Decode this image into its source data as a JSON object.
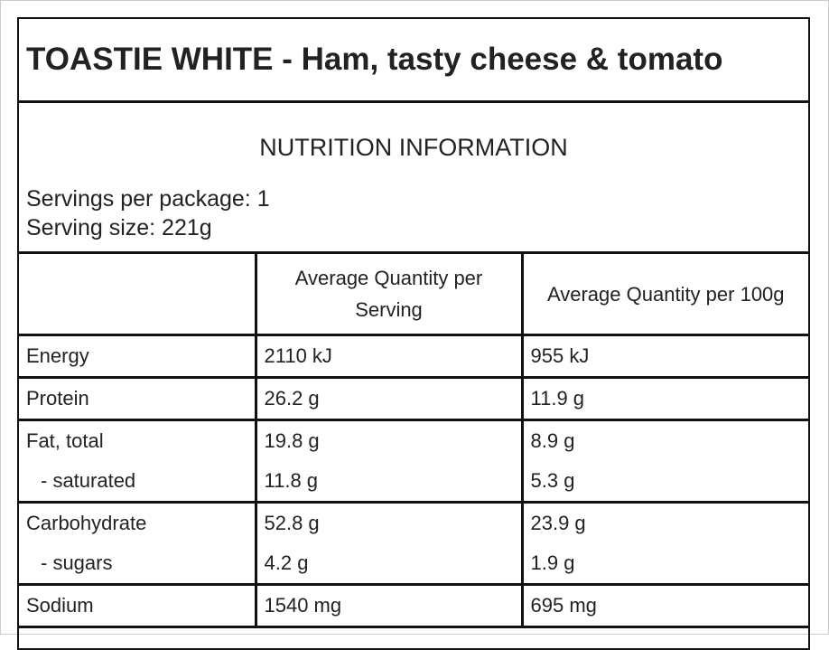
{
  "header": {
    "title": "TOASTIE WHITE - Ham, tasty cheese & tomato"
  },
  "nutrition": {
    "heading": "NUTRITION INFORMATION",
    "servings_per_package": "Servings per package: 1",
    "serving_size": "Serving size: 221g"
  },
  "table": {
    "columns": [
      "Average Quantity per Serving",
      "Average Quantity per 100g"
    ],
    "rows": [
      [
        [
          "Energy",
          "2110 kJ",
          "955 kJ"
        ]
      ],
      [
        [
          "Protein",
          "26.2 g",
          "11.9 g"
        ]
      ],
      [
        [
          "Fat, total",
          "19.8 g",
          "8.9 g"
        ],
        [
          "- saturated",
          "11.8 g",
          "5.3 g"
        ]
      ],
      [
        [
          "Carbohydrate",
          "52.8 g",
          "23.9 g"
        ],
        [
          "- sugars",
          "4.2 g",
          "1.9 g"
        ]
      ],
      [
        [
          "Sodium",
          "1540 mg",
          "695 mg"
        ]
      ]
    ]
  }
}
